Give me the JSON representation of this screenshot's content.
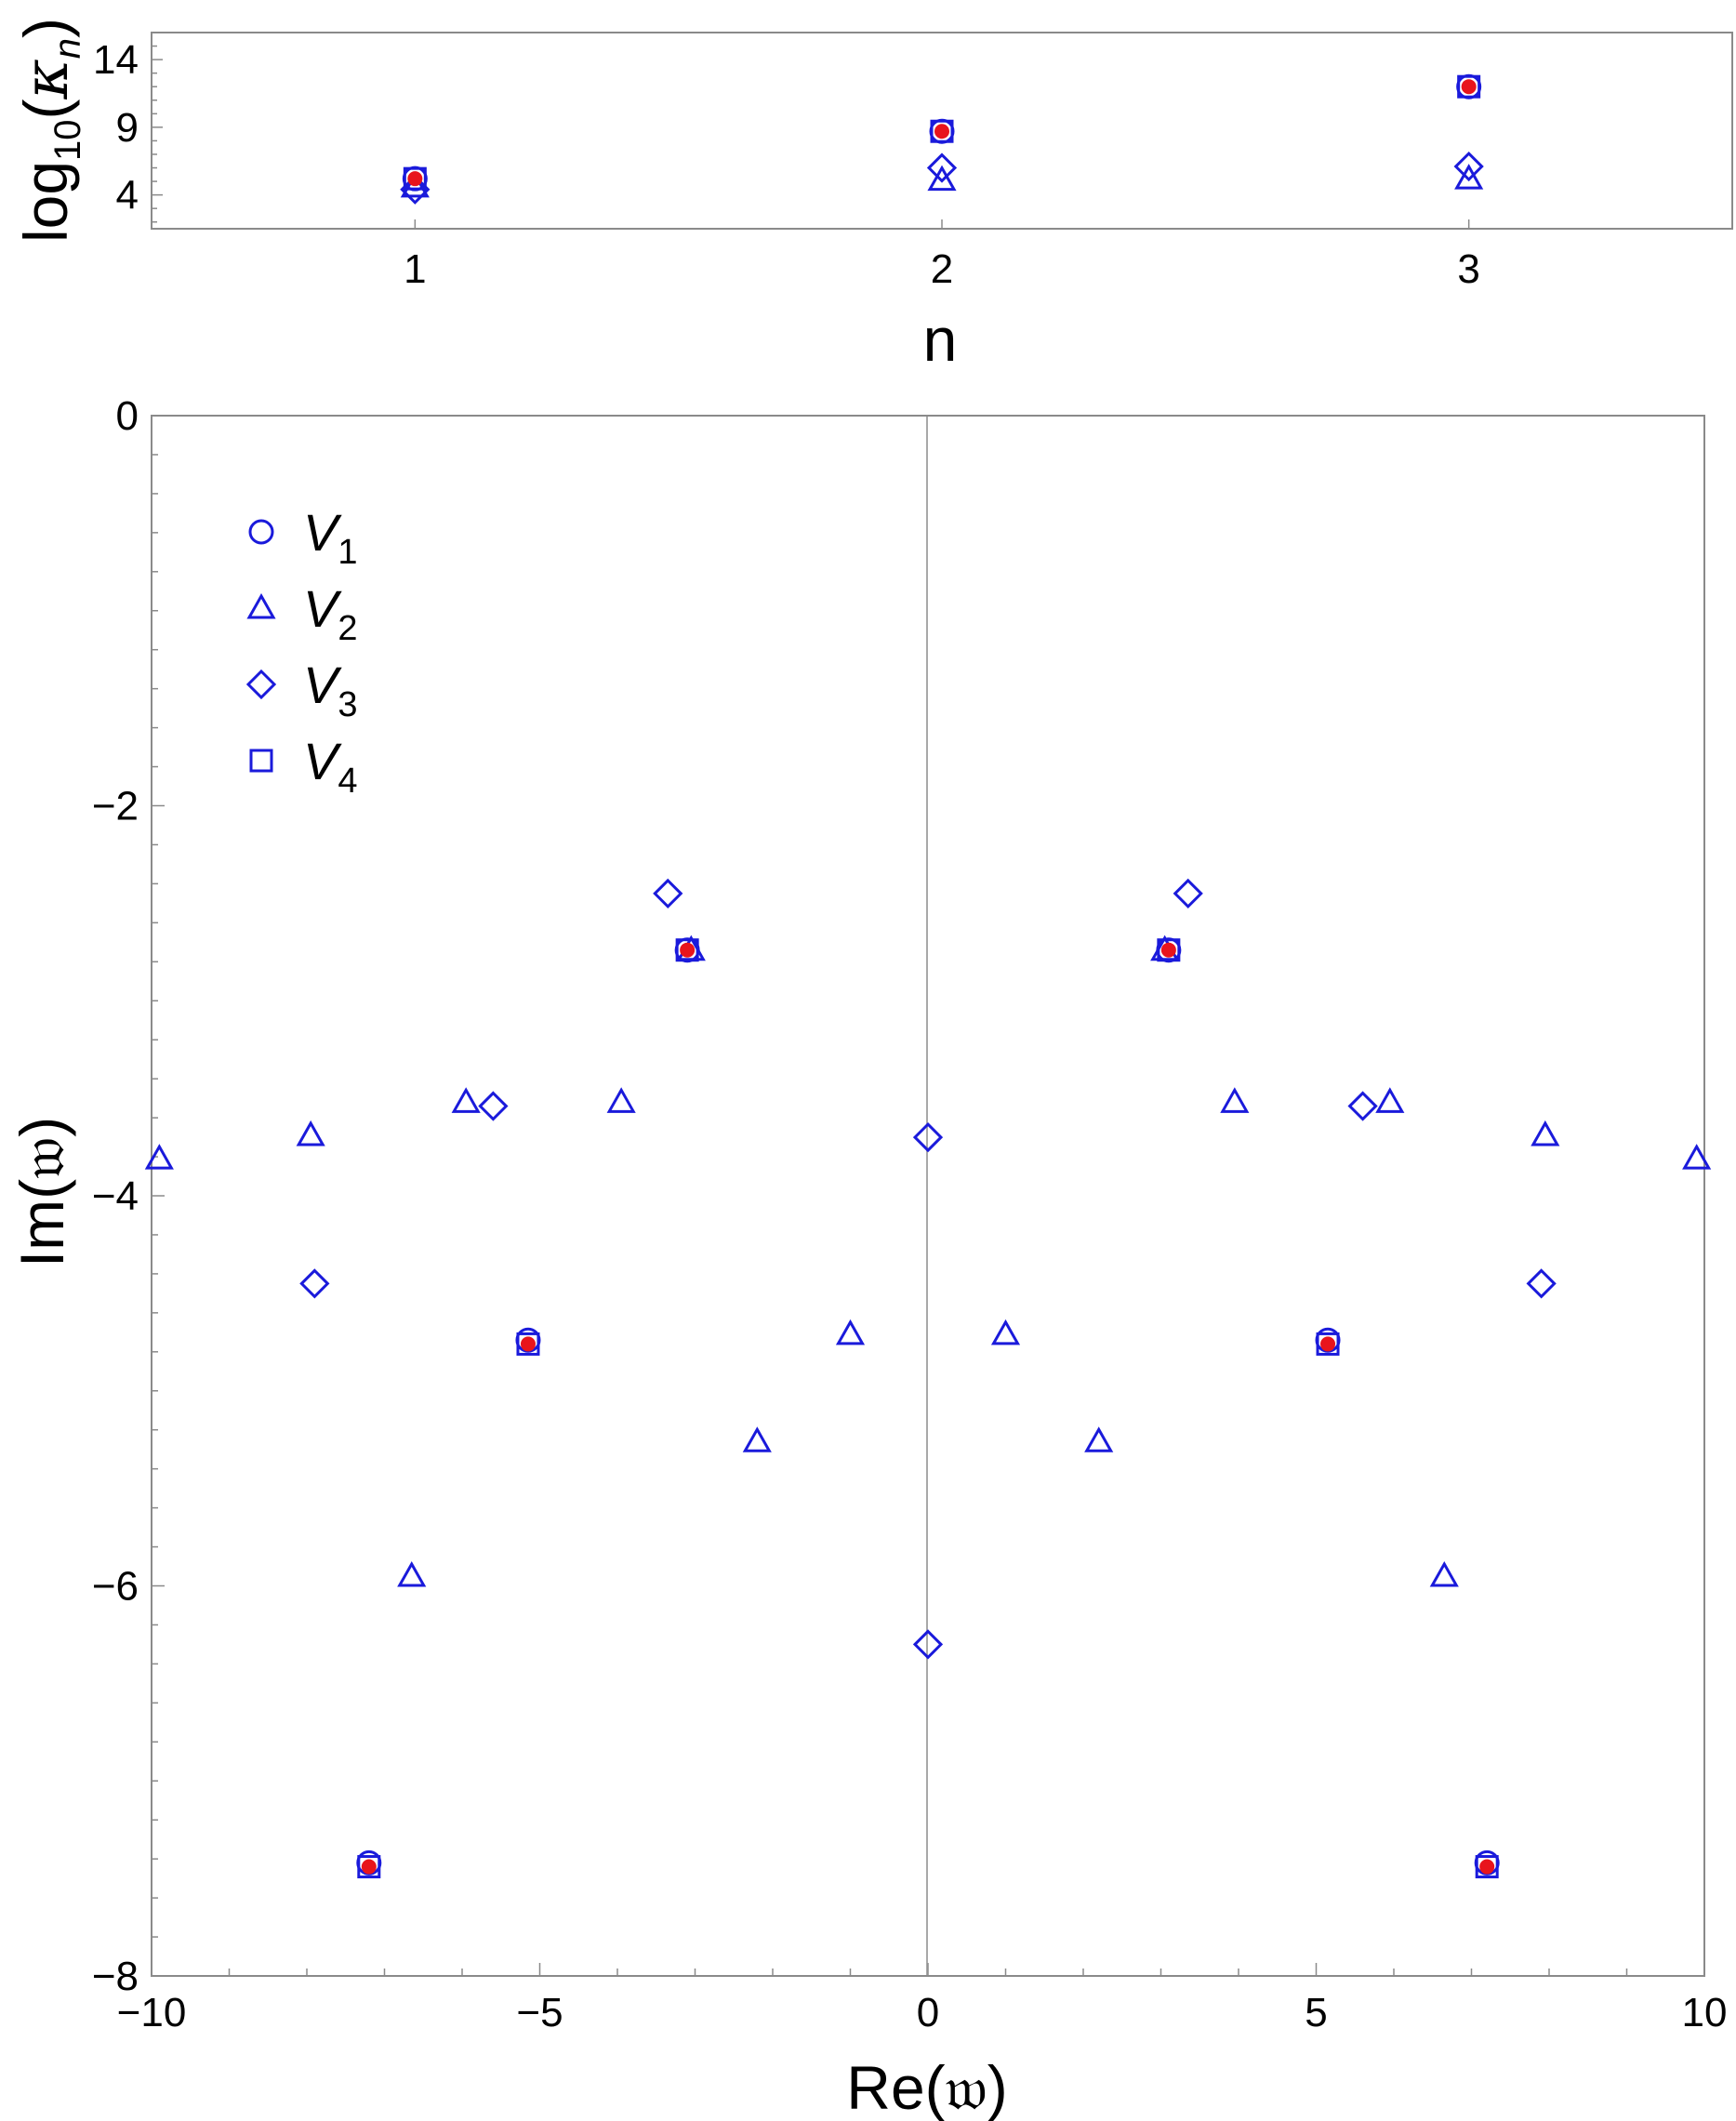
{
  "colors": {
    "marker": "#1a1adb",
    "exact": "#e8141c",
    "frame": "#8a8a8a"
  },
  "chart_data": [
    {
      "type": "scatter",
      "xlabel": "n",
      "ylabel": "log10(κn)",
      "xticks": [
        "1",
        "2",
        "3"
      ],
      "yticks": [
        "4",
        "9",
        "14"
      ],
      "xlim": [
        0.5,
        3.5
      ],
      "ylim": [
        1.5,
        16
      ],
      "series": [
        {
          "marker": "circle",
          "points": [
            [
              1,
              5.2
            ],
            [
              2,
              8.7
            ],
            [
              3,
              12.0
            ]
          ]
        },
        {
          "marker": "triangle",
          "points": [
            [
              1,
              4.6
            ],
            [
              2,
              5.1
            ],
            [
              3,
              5.2
            ]
          ]
        },
        {
          "marker": "diamond",
          "points": [
            [
              1,
              4.4
            ],
            [
              2,
              6.0
            ],
            [
              3,
              6.1
            ]
          ]
        },
        {
          "marker": "square",
          "points": [
            [
              1,
              5.2
            ],
            [
              2,
              8.7
            ],
            [
              3,
              12.0
            ]
          ]
        },
        {
          "marker": "dot",
          "points": [
            [
              1,
              5.2
            ],
            [
              2,
              8.7
            ],
            [
              3,
              12.0
            ]
          ]
        }
      ]
    },
    {
      "type": "scatter",
      "xlabel": "Re(𝔴)",
      "ylabel": "Im(𝔴)",
      "xticks": [
        "−10",
        "−5",
        "0",
        "5",
        "10"
      ],
      "yticks": [
        "0",
        "−2",
        "−4",
        "−6",
        "−8"
      ],
      "xlim": [
        -10,
        10
      ],
      "ylim": [
        -8,
        0
      ],
      "grid": false,
      "legend_position": "top-left",
      "series": [
        {
          "name": "V1",
          "marker": "circle",
          "points": [
            [
              -3.1,
              -2.74
            ],
            [
              3.1,
              -2.74
            ],
            [
              -5.15,
              -4.74
            ],
            [
              5.15,
              -4.74
            ],
            [
              -7.2,
              -7.42
            ],
            [
              7.2,
              -7.42
            ]
          ]
        },
        {
          "name": "V2",
          "marker": "triangle",
          "points": [
            [
              -3.05,
              -2.74
            ],
            [
              3.05,
              -2.74
            ],
            [
              -5.95,
              -3.52
            ],
            [
              5.95,
              -3.52
            ],
            [
              -3.95,
              -3.52
            ],
            [
              3.95,
              -3.52
            ],
            [
              -7.95,
              -3.69
            ],
            [
              7.95,
              -3.69
            ],
            [
              -9.9,
              -3.81
            ],
            [
              9.9,
              -3.81
            ],
            [
              -1.0,
              -4.71
            ],
            [
              1.0,
              -4.71
            ],
            [
              -2.2,
              -5.26
            ],
            [
              2.2,
              -5.26
            ],
            [
              -6.65,
              -5.95
            ],
            [
              6.65,
              -5.95
            ]
          ]
        },
        {
          "name": "V3",
          "marker": "diamond",
          "points": [
            [
              -3.35,
              -2.45
            ],
            [
              3.35,
              -2.45
            ],
            [
              -5.6,
              -3.54
            ],
            [
              5.6,
              -3.54
            ],
            [
              0,
              -3.7
            ],
            [
              -7.9,
              -4.45
            ],
            [
              7.9,
              -4.45
            ],
            [
              0,
              -6.3
            ]
          ]
        },
        {
          "name": "V4",
          "marker": "square",
          "points": [
            [
              -3.1,
              -2.74
            ],
            [
              3.1,
              -2.74
            ],
            [
              -5.15,
              -4.76
            ],
            [
              5.15,
              -4.76
            ],
            [
              -7.2,
              -7.44
            ],
            [
              7.2,
              -7.44
            ]
          ]
        },
        {
          "marker": "dot",
          "points": [
            [
              -3.1,
              -2.74
            ],
            [
              3.1,
              -2.74
            ],
            [
              -5.15,
              -4.76
            ],
            [
              5.15,
              -4.76
            ],
            [
              -7.2,
              -7.44
            ],
            [
              7.2,
              -7.44
            ]
          ]
        }
      ]
    }
  ],
  "legend": [
    {
      "marker": "circle",
      "base": "V",
      "sub": "1"
    },
    {
      "marker": "triangle",
      "base": "V",
      "sub": "2"
    },
    {
      "marker": "diamond",
      "base": "V",
      "sub": "3"
    },
    {
      "marker": "square",
      "base": "V",
      "sub": "4"
    }
  ]
}
